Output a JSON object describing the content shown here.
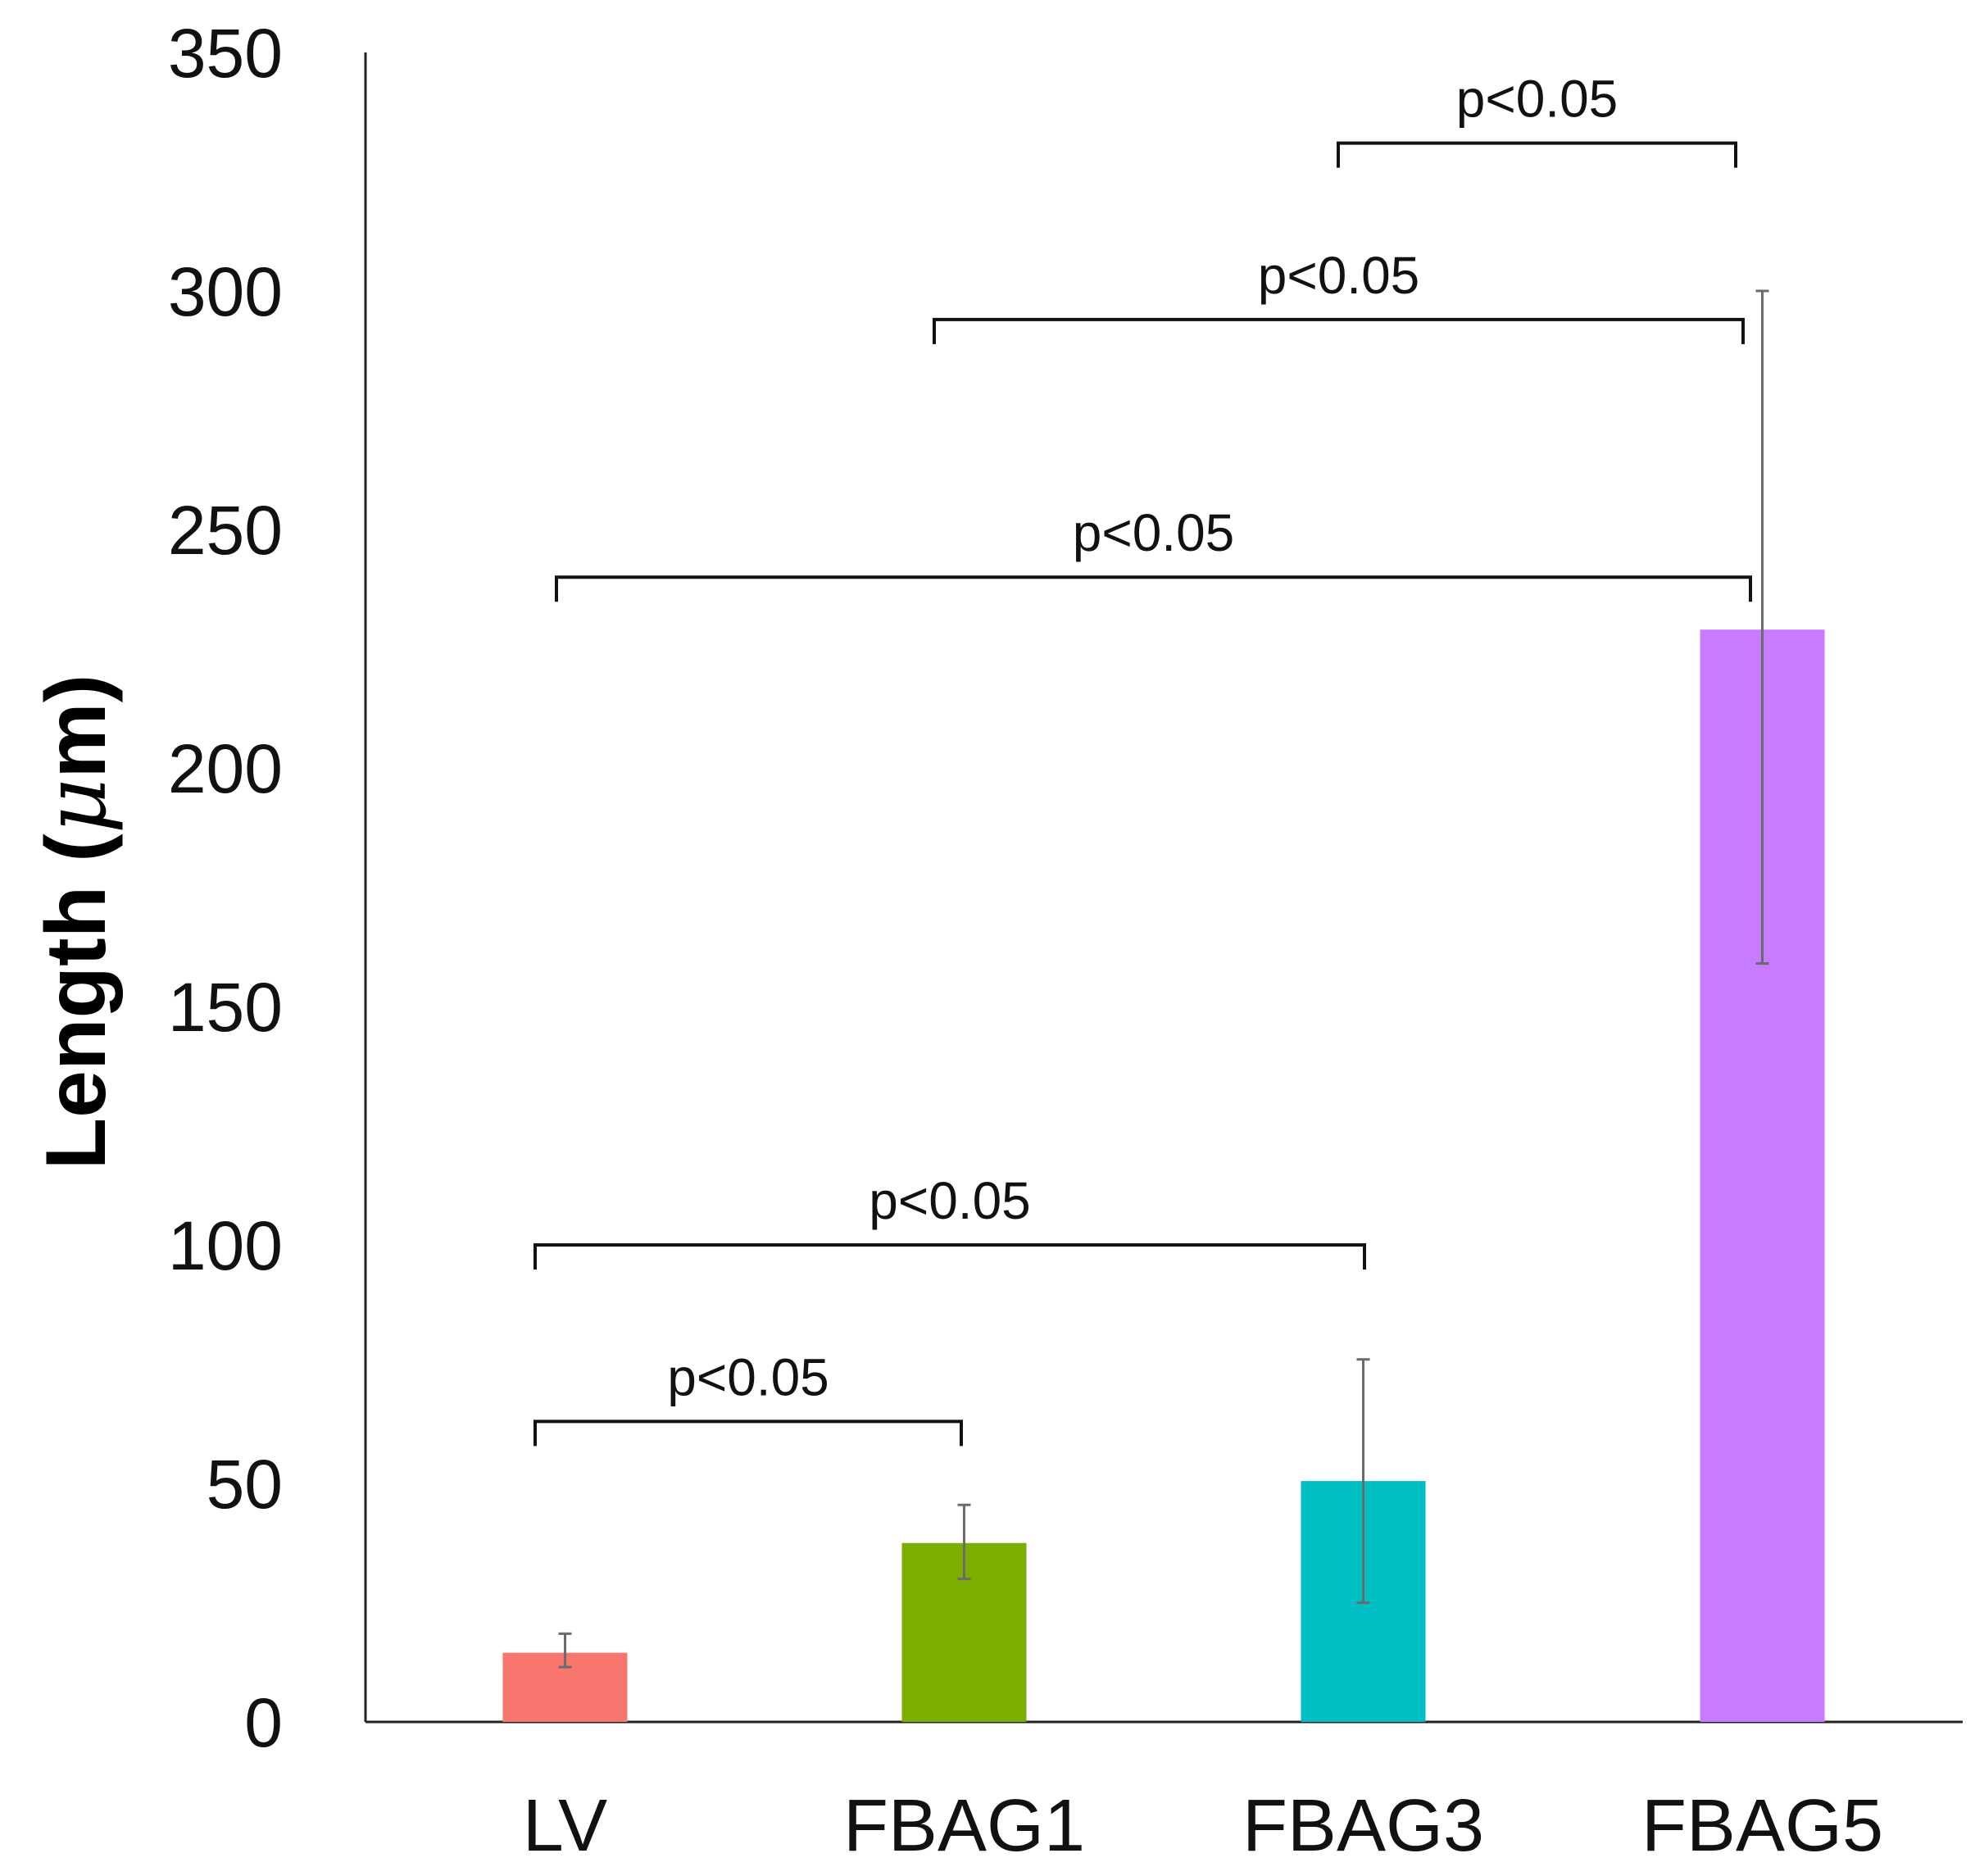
{
  "chart_data": {
    "type": "bar",
    "title": "",
    "xlabel": "",
    "ylabel": "Length (μm)",
    "ylabel_parts": {
      "prefix": "Length (",
      "mu": "μ",
      "suffix": "m)"
    },
    "ylim": [
      0,
      350
    ],
    "yticks": [
      "0",
      "50",
      "100",
      "150",
      "200",
      "250",
      "300",
      "350"
    ],
    "categories": [
      "LV",
      "FBAG1",
      "FBAG3",
      "FBAG5"
    ],
    "values": [
      14.5,
      37.5,
      50.5,
      229
    ],
    "error_low": [
      11.5,
      30,
      25,
      159
    ],
    "error_high": [
      18.5,
      45.5,
      76,
      300
    ],
    "colors": [
      "#f8766d",
      "#7cae00",
      "#00bfc4",
      "#c77cff"
    ],
    "significance": [
      {
        "from": 0,
        "to": 1,
        "y": 63,
        "label": "p<0.05"
      },
      {
        "from": 0,
        "to": 2,
        "y": 100,
        "label": "p<0.05"
      },
      {
        "from": 0,
        "to": 3,
        "y": 240,
        "label": "p<0.05"
      },
      {
        "from": 1,
        "to": 3,
        "y": 294,
        "label": "p<0.05"
      },
      {
        "from": 2,
        "to": 3,
        "y": 331,
        "label": "p<0.05"
      }
    ]
  }
}
